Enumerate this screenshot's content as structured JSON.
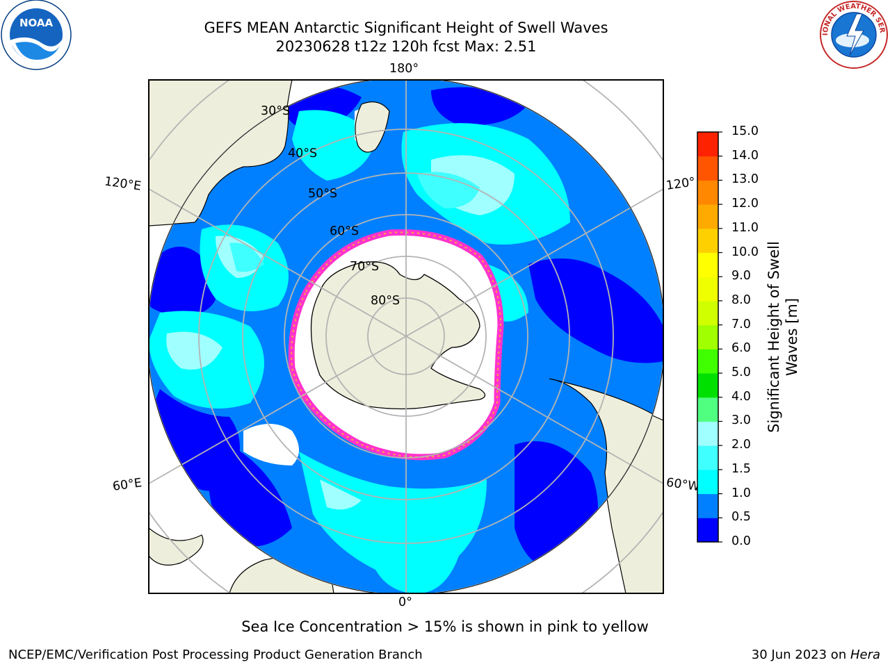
{
  "title": {
    "line1": "GEFS MEAN Antarctic Significant Height of Swell Waves",
    "line2": "20230628 t12z 120h fcst   Max: 2.51"
  },
  "map": {
    "longitude_labels": {
      "top": "180°",
      "bottom": "0°",
      "left_upper": "120°E",
      "right_upper": "120°",
      "left_lower": "60°E",
      "right_lower": "60°W"
    },
    "latitude_labels": [
      "30°S",
      "40°S",
      "50°S",
      "60°S",
      "70°S",
      "80°S"
    ],
    "colors": {
      "land": "#eeeedc",
      "ocean_0_0p5": "#0000ff",
      "ocean_0p5_1": "#0080ff",
      "ocean_1_1p5": "#00ffff",
      "ocean_1p5_2": "#40ffff",
      "ocean_2_2p5": "#a0ffff",
      "ice": "#ff33cc",
      "grid": "#b4b4b4"
    }
  },
  "colorbar": {
    "label_line1": "Significant Height of Swell",
    "label_line2": "Waves [m]",
    "ticks": [
      "0.0",
      "0.5",
      "1.0",
      "1.5",
      "2.0",
      "3.0",
      "4.0",
      "5.0",
      "6.0",
      "7.0",
      "8.0",
      "9.0",
      "10.0",
      "11.0",
      "12.0",
      "13.0",
      "14.0",
      "15.0"
    ],
    "colors": [
      "#0000ff",
      "#0080ff",
      "#00ffff",
      "#40ffff",
      "#a0ffff",
      "#50ff80",
      "#00e000",
      "#40ff00",
      "#a0ff00",
      "#d0ff00",
      "#f0ff00",
      "#ffff00",
      "#ffd000",
      "#ffaa00",
      "#ff8800",
      "#ff5500",
      "#ff2200",
      "#ff0000"
    ]
  },
  "note": "Sea Ice Concentration > 15% is shown in pink to yellow",
  "footer": {
    "left": "NCEP/EMC/Verification Post Processing Product Generation Branch",
    "right_date": "30 Jun 2023 on ",
    "right_host": "Hera"
  },
  "logos": {
    "noaa_text": "NOAA",
    "nws_text": "NATIONAL WEATHER SERVICE"
  }
}
